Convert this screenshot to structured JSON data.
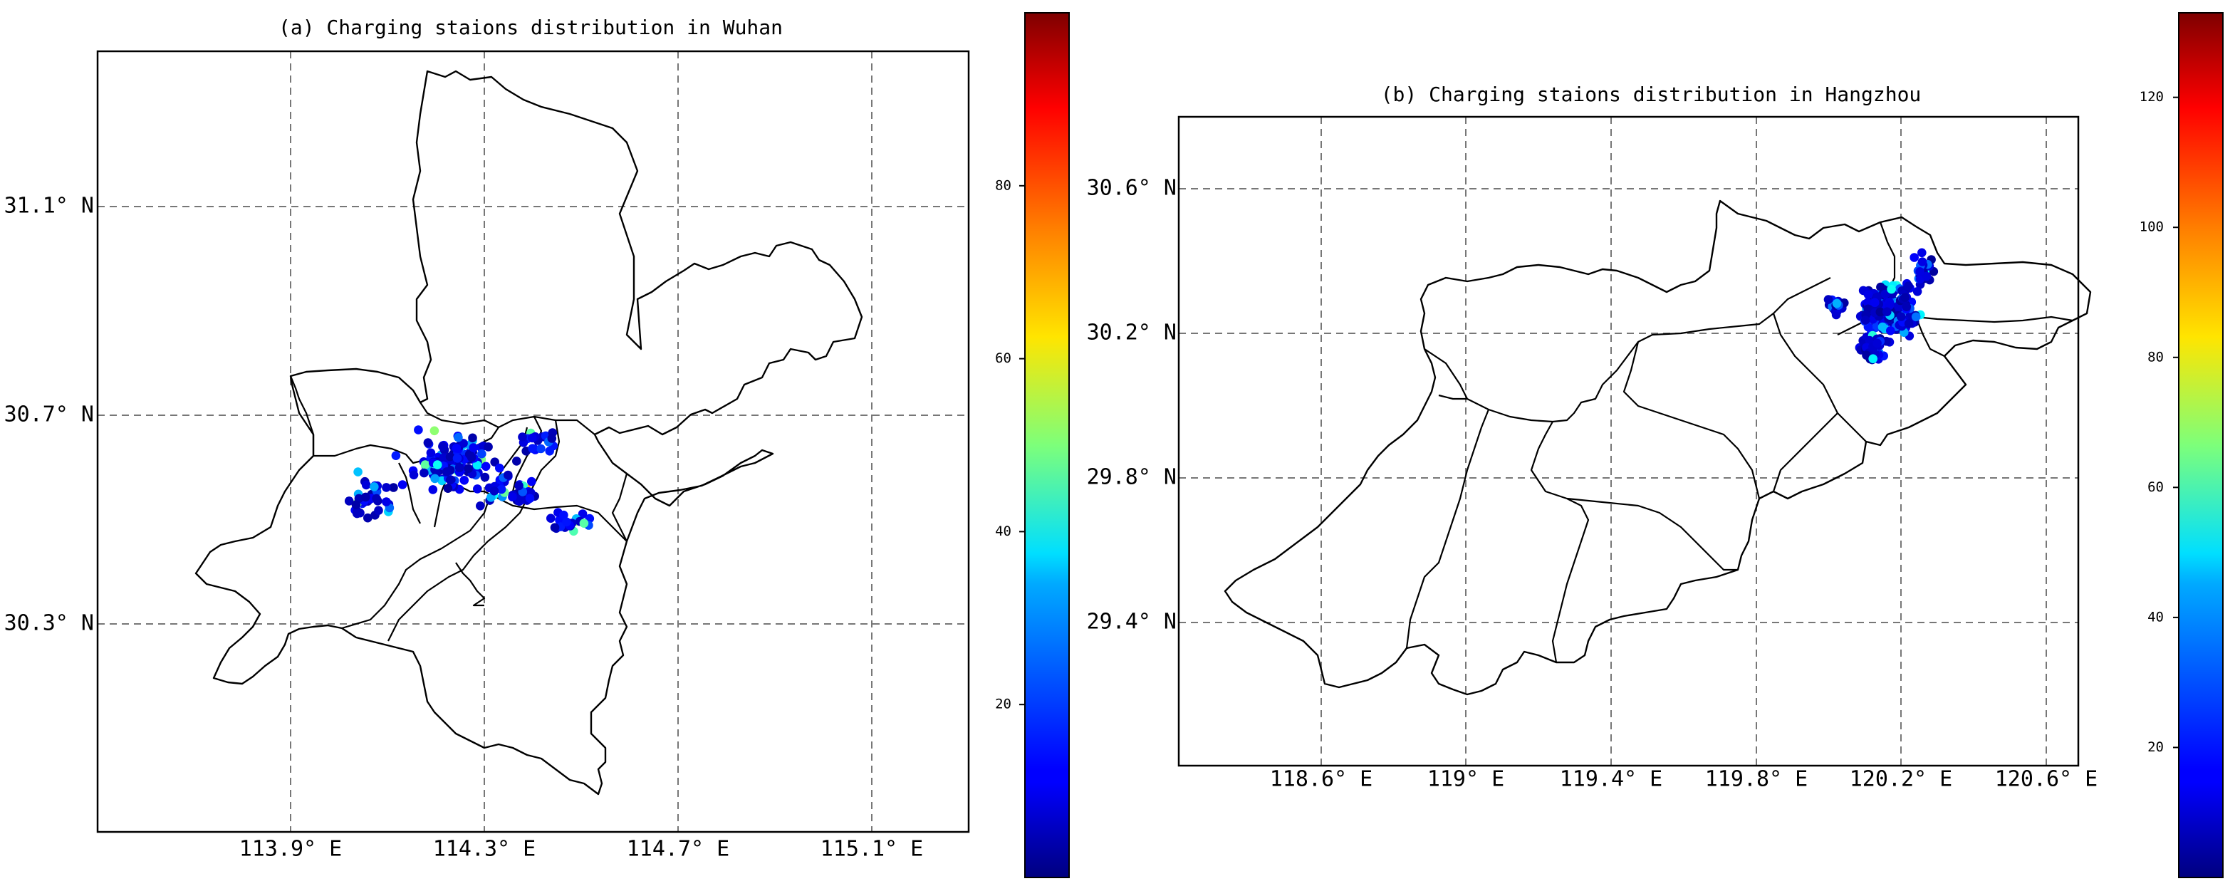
{
  "maps": [
    {
      "id": "wuhan",
      "title": "(a) Charging staions distribution in Wuhan",
      "x_ticks": [
        "113.9° E",
        "114.3° E",
        "114.7° E",
        "115.1° E"
      ],
      "y_ticks": [
        "31.1° N",
        "30.7° N",
        "30.3° N"
      ],
      "colorbar": {
        "ticks": [
          20,
          40,
          60,
          80
        ],
        "vmin": 0,
        "vmax": 100
      }
    },
    {
      "id": "hangzhou",
      "title": "(b) Charging staions distribution in Hangzhou",
      "x_ticks": [
        "118.6° E",
        "119° E",
        "119.4° E",
        "119.8° E",
        "120.2° E",
        "120.6° E"
      ],
      "y_ticks": [
        "30.6° N",
        "30.2° N",
        "29.8° N",
        "29.4° N"
      ],
      "colorbar": {
        "ticks": [
          20,
          40,
          60,
          80,
          100,
          120
        ],
        "vmin": 0,
        "vmax": 133
      }
    }
  ],
  "colormap": "jet"
}
